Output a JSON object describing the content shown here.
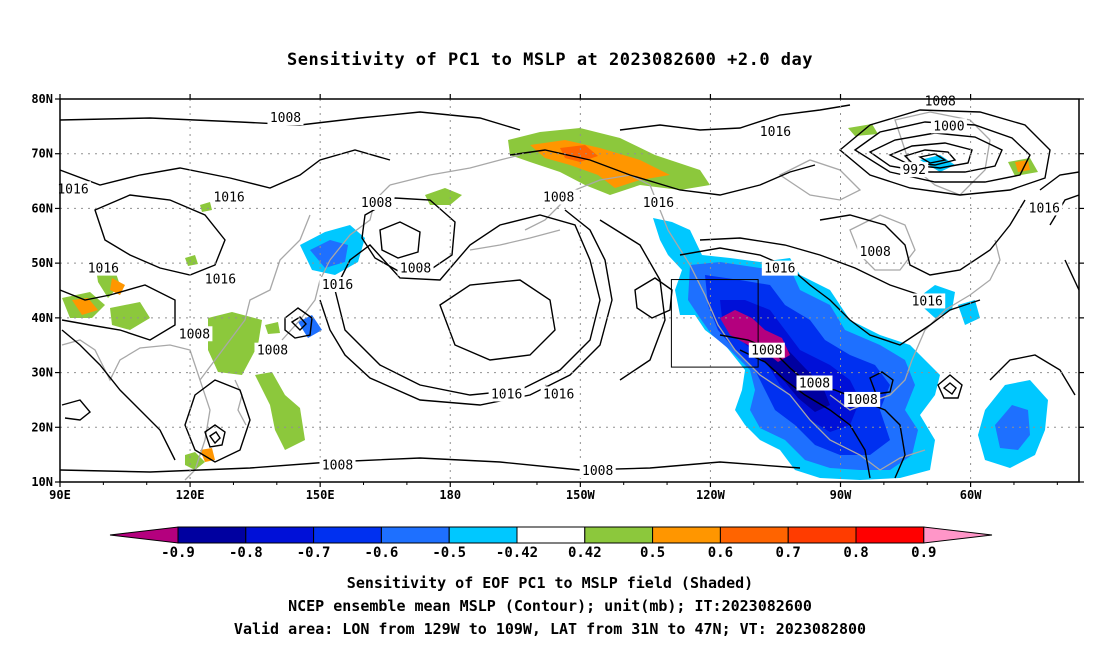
{
  "title": "Sensitivity of PC1 to MSLP at 2023082600 +2.0 day",
  "map": {
    "lat_labels": [
      "80N",
      "70N",
      "60N",
      "50N",
      "40N",
      "30N",
      "20N",
      "10N"
    ],
    "lon_labels": [
      "90E",
      "120E",
      "150E",
      "180",
      "150W",
      "120W",
      "90W",
      "60W"
    ],
    "contour_labels": [
      {
        "text": "1008",
        "lon": 142,
        "lat": 76.5
      },
      {
        "text": "1016",
        "lon": 93,
        "lat": 63.5
      },
      {
        "text": "1016",
        "lon": 129,
        "lat": 62
      },
      {
        "text": "1008",
        "lon": 163,
        "lat": 61
      },
      {
        "text": "1008",
        "lon": 172,
        "lat": 49
      },
      {
        "text": "1016",
        "lon": 100,
        "lat": 49
      },
      {
        "text": "1016",
        "lon": 127,
        "lat": 47
      },
      {
        "text": "1016",
        "lon": 154,
        "lat": 46
      },
      {
        "text": "1008",
        "lon": 121,
        "lat": 37
      },
      {
        "text": "1008",
        "lon": 139,
        "lat": 34
      },
      {
        "text": "1016",
        "lon": 193,
        "lat": 26
      },
      {
        "text": "1016",
        "lon": 205,
        "lat": 26
      },
      {
        "text": "1008",
        "lon": 154,
        "lat": 13
      },
      {
        "text": "1008",
        "lon": 214,
        "lat": 12
      },
      {
        "text": "1008",
        "lon": 205,
        "lat": 62
      },
      {
        "text": "1016",
        "lon": 228,
        "lat": 61
      },
      {
        "text": "1016",
        "lon": 255,
        "lat": 74
      },
      {
        "text": "1008",
        "lon": 293,
        "lat": 79.5
      },
      {
        "text": "1000",
        "lon": 295,
        "lat": 75
      },
      {
        "text": "992",
        "lon": 287,
        "lat": 67
      },
      {
        "text": "1016",
        "lon": 317,
        "lat": 60
      },
      {
        "text": "1008",
        "lon": 278,
        "lat": 52
      },
      {
        "text": "1016",
        "lon": 256,
        "lat": 49
      },
      {
        "text": "1016",
        "lon": 290,
        "lat": 43
      },
      {
        "text": "1008",
        "lon": 253,
        "lat": 34
      },
      {
        "text": "1008",
        "lon": 264,
        "lat": 28
      },
      {
        "text": "1008",
        "lon": 275,
        "lat": 25
      }
    ],
    "valid_area": {
      "lon_min": 231,
      "lon_max": 251,
      "lat_min": 31,
      "lat_max": 47
    }
  },
  "colorbar": {
    "labels": [
      "-0.9",
      "-0.8",
      "-0.7",
      "-0.6",
      "-0.5",
      "-0.42",
      "0.42",
      "0.5",
      "0.6",
      "0.7",
      "0.8",
      "0.9"
    ],
    "colors": {
      "lt_-0.9": "#b4007e",
      "-0.9": "#0000a0",
      "-0.8": "#0010d8",
      "-0.7": "#0030f0",
      "-0.6": "#1e70ff",
      "-0.5": "#00c8ff",
      "neutral": "#ffffff",
      "0.42": "#8cc83c",
      "0.5": "#ff9600",
      "0.6": "#ff6400",
      "0.7": "#ff3c00",
      "0.8": "#ff0000",
      "gt_0.9": "#ff96c8"
    }
  },
  "captions": {
    "line1": "Sensitivity of EOF PC1 to MSLP field (Shaded)",
    "line2": "NCEP ensemble mean MSLP (Contour); unit(mb); IT:2023082600",
    "line3": "Valid area: LON from 129W to 109W, LAT from 31N to 47N; VT: 2023082800"
  }
}
